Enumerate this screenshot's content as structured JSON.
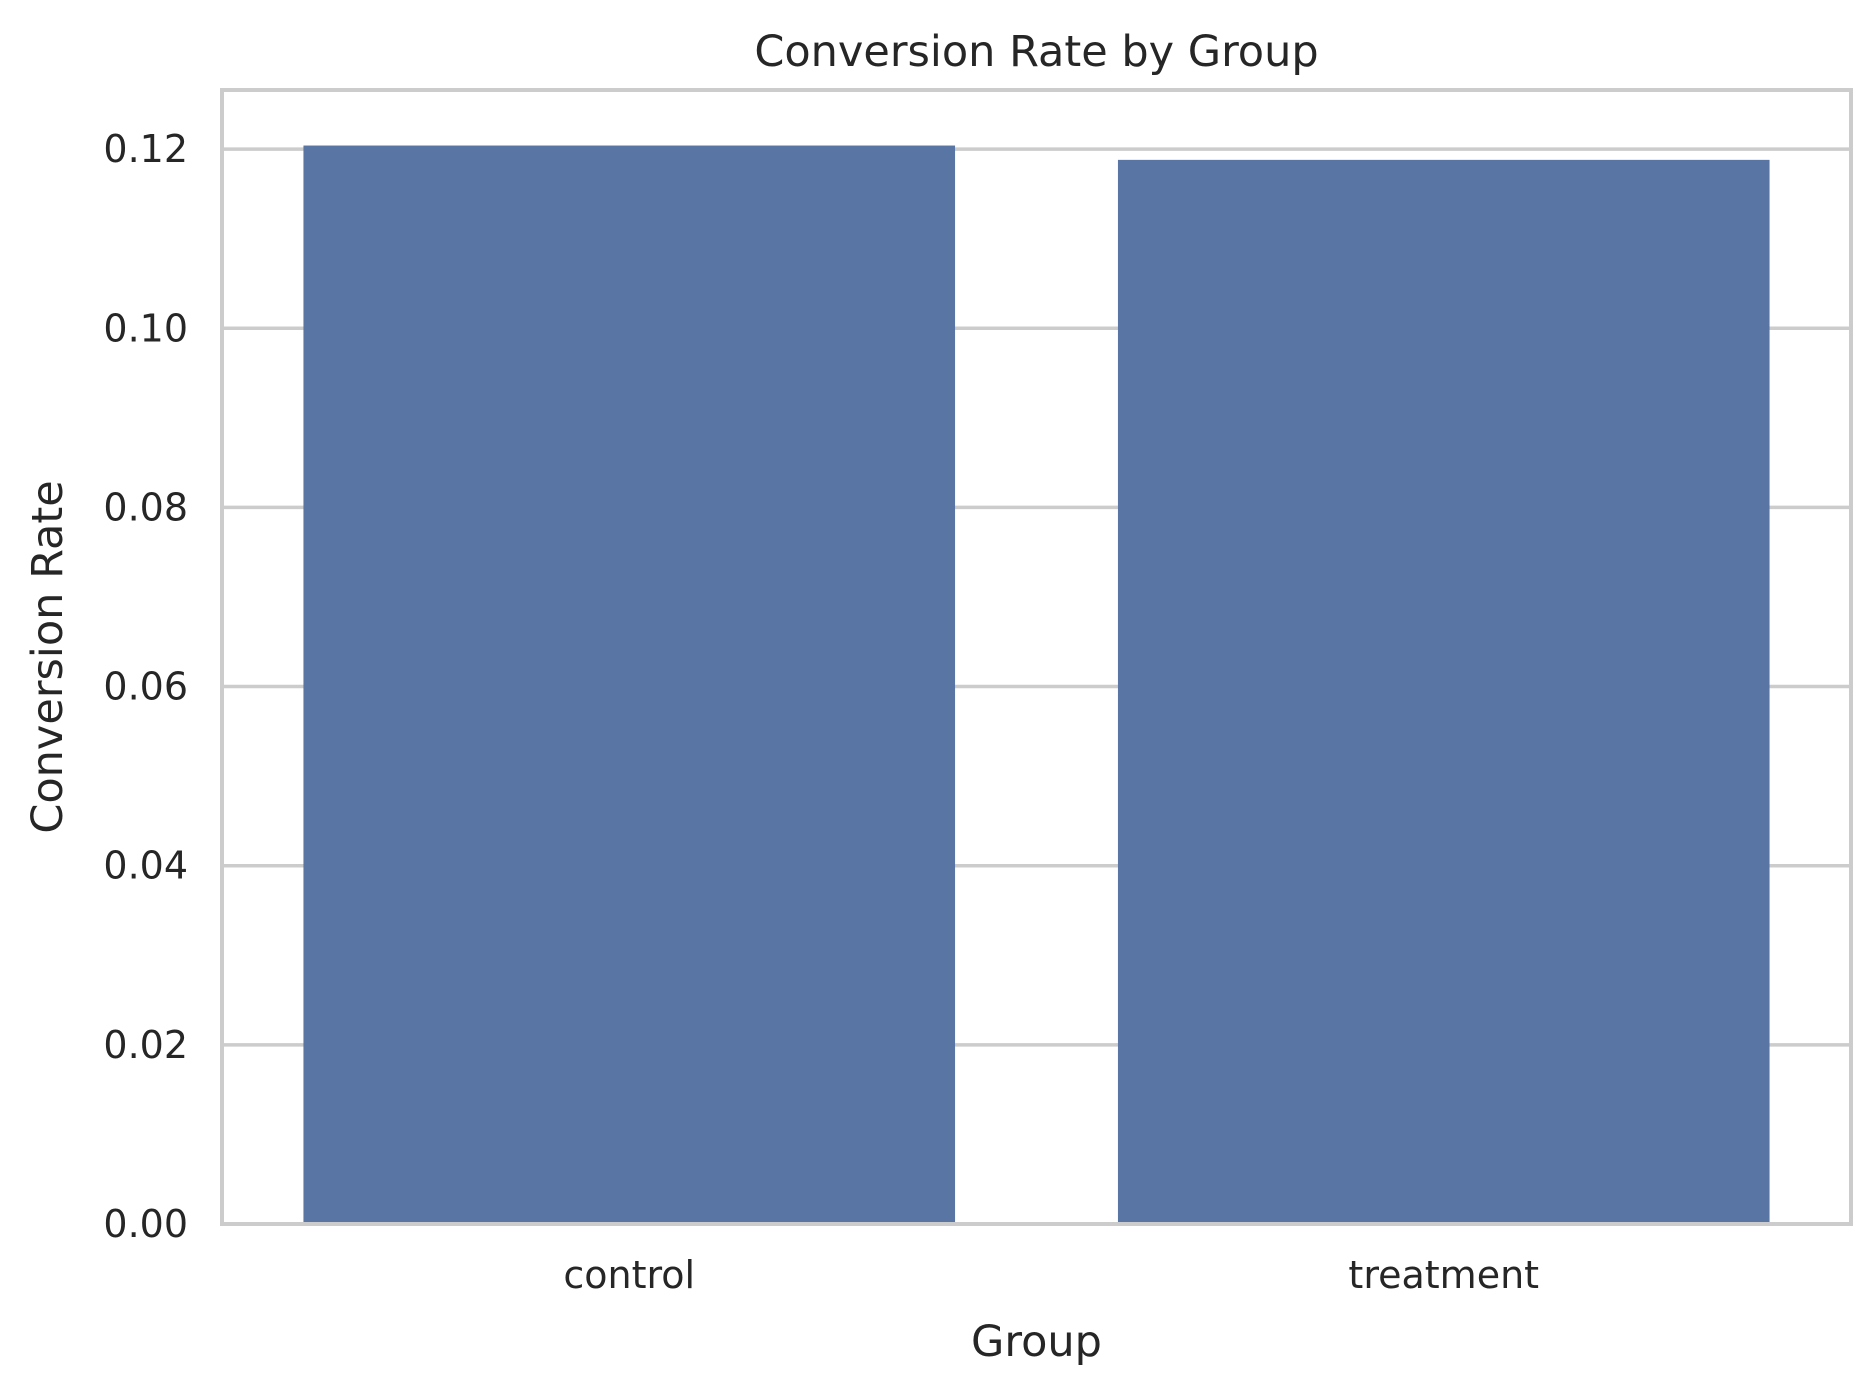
{
  "chart_data": {
    "type": "bar",
    "title": "Conversion Rate by Group",
    "xlabel": "Group",
    "ylabel": "Conversion Rate",
    "categories": [
      "control",
      "treatment"
    ],
    "values": [
      0.1204,
      0.1188
    ],
    "ylim": [
      0,
      0.1266
    ],
    "yticks": [
      0.0,
      0.02,
      0.04,
      0.06,
      0.08,
      0.1,
      0.12
    ],
    "ytick_labels": [
      "0.00",
      "0.02",
      "0.04",
      "0.06",
      "0.08",
      "0.10",
      "0.12"
    ],
    "grid": true,
    "bar_color": "#5975a4",
    "grid_color": "#cccccc",
    "frame_color": "#cccccc"
  }
}
